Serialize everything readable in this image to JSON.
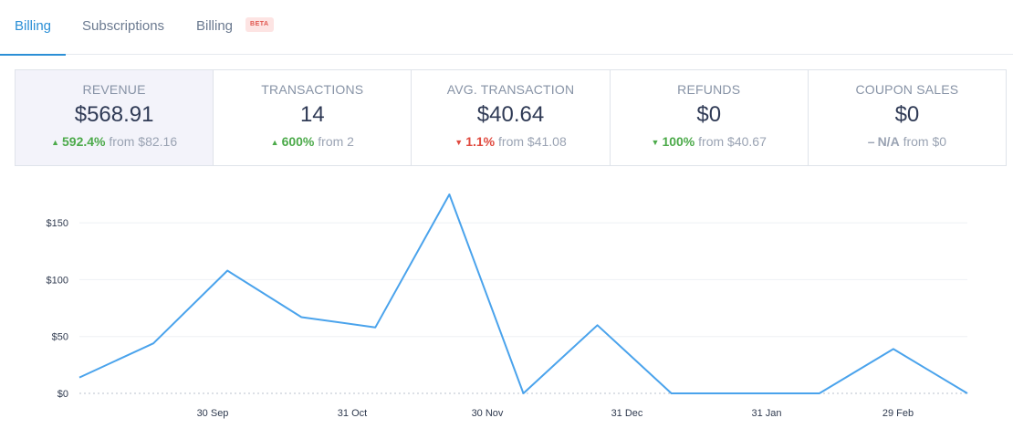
{
  "tabs": [
    {
      "label": "Billing",
      "active": true
    },
    {
      "label": "Subscriptions",
      "active": false
    },
    {
      "label": "Billing",
      "active": false,
      "badge": "BETA"
    }
  ],
  "stats": [
    {
      "label": "REVENUE",
      "value": "$568.91",
      "direction": "up",
      "change": "592.4%",
      "from": "from $82.16"
    },
    {
      "label": "TRANSACTIONS",
      "value": "14",
      "direction": "up",
      "change": "600%",
      "from": "from 2"
    },
    {
      "label": "AVG. TRANSACTION",
      "value": "$40.64",
      "direction": "down",
      "change": "1.1%",
      "from": "from $41.08"
    },
    {
      "label": "REFUNDS",
      "value": "$0",
      "direction": "down",
      "change": "100%",
      "from": "from $40.67"
    },
    {
      "label": "COUPON SALES",
      "value": "$0",
      "direction": "flat",
      "change": "N/A",
      "from": "from $0"
    }
  ],
  "chart_data": {
    "type": "line",
    "ylim": [
      0,
      175
    ],
    "y_ticks": [
      0,
      50,
      100,
      150
    ],
    "y_tick_labels": [
      "$0",
      "$50",
      "$100",
      "$150"
    ],
    "x_tick_labels": [
      "30 Sep",
      "31 Oct",
      "30 Nov",
      "31 Dec",
      "31 Jan",
      "29 Feb"
    ],
    "grid": "horizontal",
    "line_color": "#4aa3ec",
    "series": [
      {
        "values": [
          14,
          44,
          108,
          67,
          58,
          175,
          0,
          60,
          0,
          0,
          0,
          39,
          0
        ]
      }
    ]
  }
}
